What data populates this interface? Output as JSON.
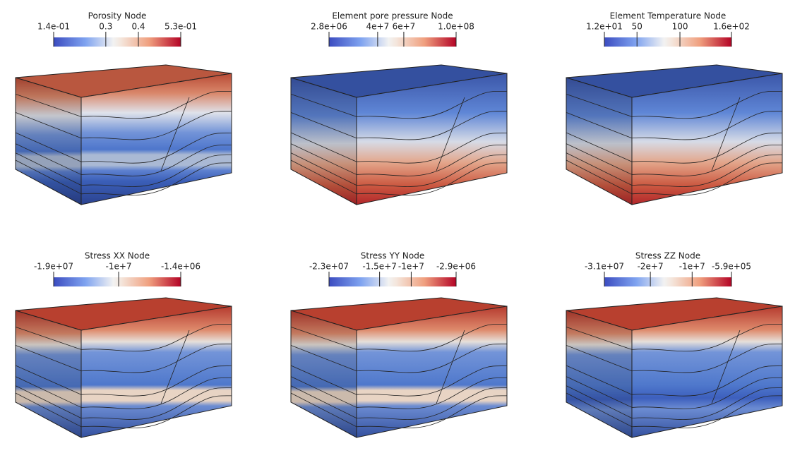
{
  "panels": [
    {
      "title": "Porosity Node",
      "ticks": [
        {
          "value": 0.14,
          "label": "1.4e-01"
        },
        0.3,
        0.4,
        {
          "value": 0.53,
          "label": "5.3e-01"
        }
      ]
    },
    {
      "title": "Element pore pressure Node",
      "ticks": [
        {
          "value": 2800000,
          "label": "2.8e+06"
        },
        {
          "value": 40000000,
          "label": "4e+7"
        },
        {
          "value": 60000000,
          "label": "6e+7"
        },
        {
          "value": 100000000,
          "label": "1.0e+08"
        }
      ]
    },
    {
      "title": "Element Temperature Node",
      "ticks": [
        {
          "value": 12,
          "label": "1.2e+01"
        },
        50,
        100,
        {
          "value": 160,
          "label": "1.6e+02"
        }
      ]
    },
    {
      "title": "Stress XX Node",
      "ticks": [
        {
          "value": -19000000,
          "label": "-1.9e+07"
        },
        {
          "value": -10000000,
          "label": "-1e+7"
        },
        {
          "value": -1400000,
          "label": "-1.4e+06"
        }
      ]
    },
    {
      "title": "Stress YY Node",
      "ticks": [
        {
          "value": -23000000,
          "label": "-2.3e+07"
        },
        {
          "value": -15000000,
          "label": "-1.5e+7"
        },
        {
          "value": -10000000,
          "label": "-1e+7"
        },
        {
          "value": -2900000,
          "label": "-2.9e+06"
        }
      ]
    },
    {
      "title": "Stress ZZ Node",
      "ticks": [
        {
          "value": -31000000,
          "label": "-3.1e+07"
        },
        {
          "value": -20000000,
          "label": "-2e+7"
        },
        {
          "value": -10000000,
          "label": "-1e+7"
        },
        {
          "value": -590000,
          "label": "-5.9e+05"
        }
      ]
    }
  ]
}
